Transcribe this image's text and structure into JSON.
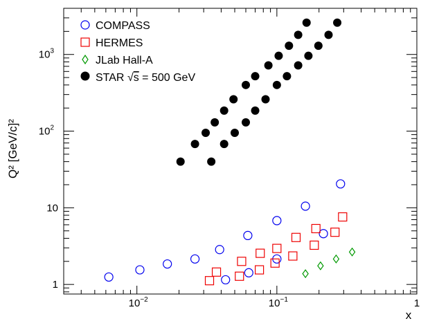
{
  "chart_data": {
    "type": "scatter",
    "title": "",
    "xlabel": "x",
    "ylabel": "Q² [GeV/c]²",
    "x_scale": "log",
    "y_scale": "log",
    "xlim": [
      0.003,
      1
    ],
    "ylim": [
      0.75,
      4000
    ],
    "x_tick_labels": [
      {
        "value": 0.01,
        "base": "10",
        "exp": "−2"
      },
      {
        "value": 0.1,
        "base": "10",
        "exp": "−1"
      },
      {
        "value": 1,
        "base": "1",
        "exp": ""
      }
    ],
    "y_tick_labels": [
      {
        "value": 1,
        "base": "1",
        "exp": ""
      },
      {
        "value": 10,
        "base": "10",
        "exp": ""
      },
      {
        "value": 100,
        "base": "10",
        "exp": "2"
      },
      {
        "value": 1000,
        "base": "10",
        "exp": "3"
      }
    ],
    "legend_position": "top-left",
    "series": [
      {
        "name": "COMPASS",
        "marker": "open-circle",
        "color": "#0000ee",
        "points": [
          [
            0.0063,
            1.25
          ],
          [
            0.0105,
            1.55
          ],
          [
            0.0165,
            1.85
          ],
          [
            0.026,
            2.15
          ],
          [
            0.039,
            2.85
          ],
          [
            0.043,
            1.15
          ],
          [
            0.062,
            4.35
          ],
          [
            0.063,
            1.42
          ],
          [
            0.1,
            6.8
          ],
          [
            0.1,
            2.15
          ],
          [
            0.16,
            10.5
          ],
          [
            0.215,
            4.6
          ],
          [
            0.285,
            20.5
          ]
        ]
      },
      {
        "name": "HERMES",
        "marker": "open-square",
        "color": "#ee0000",
        "points": [
          [
            0.033,
            1.12
          ],
          [
            0.037,
            1.45
          ],
          [
            0.054,
            1.28
          ],
          [
            0.056,
            2.0
          ],
          [
            0.075,
            1.55
          ],
          [
            0.076,
            2.55
          ],
          [
            0.097,
            1.9
          ],
          [
            0.1,
            2.95
          ],
          [
            0.13,
            2.35
          ],
          [
            0.137,
            4.1
          ],
          [
            0.185,
            3.25
          ],
          [
            0.19,
            5.35
          ],
          [
            0.26,
            4.8
          ],
          [
            0.295,
            7.6
          ]
        ]
      },
      {
        "name": "JLab Hall-A",
        "marker": "open-diamond",
        "color": "#009900",
        "points": [
          [
            0.16,
            1.38
          ],
          [
            0.205,
            1.75
          ],
          [
            0.265,
            2.15
          ],
          [
            0.345,
            2.65
          ]
        ]
      },
      {
        "name_text": "STAR ",
        "name_root_glyph": "√",
        "name_root_arg": "s",
        "name_tail": " = 500 GeV",
        "marker": "filled-circle",
        "color": "#000000",
        "points": [
          [
            0.0205,
            40
          ],
          [
            0.026,
            68
          ],
          [
            0.031,
            95
          ],
          [
            0.036,
            130
          ],
          [
            0.042,
            185
          ],
          [
            0.049,
            260
          ],
          [
            0.06,
            400
          ],
          [
            0.07,
            520
          ],
          [
            0.087,
            720
          ],
          [
            0.103,
            960
          ],
          [
            0.122,
            1300
          ],
          [
            0.142,
            1800
          ],
          [
            0.163,
            2600
          ],
          [
            0.034,
            40
          ],
          [
            0.042,
            68
          ],
          [
            0.05,
            95
          ],
          [
            0.06,
            130
          ],
          [
            0.07,
            185
          ],
          [
            0.083,
            260
          ],
          [
            0.1,
            400
          ],
          [
            0.118,
            520
          ],
          [
            0.142,
            720
          ],
          [
            0.168,
            960
          ],
          [
            0.198,
            1300
          ],
          [
            0.234,
            1800
          ],
          [
            0.27,
            2600
          ]
        ]
      }
    ]
  }
}
